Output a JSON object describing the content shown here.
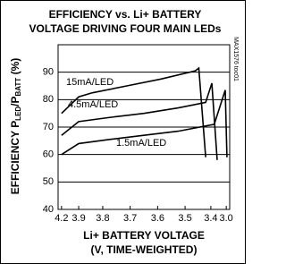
{
  "chart_data": {
    "type": "line",
    "title": [
      "EFFICIENCY vs. Li+ BATTERY",
      "VOLTAGE DRIVING FOUR MAIN LEDs"
    ],
    "ylabel": [
      "EFFICIENCY P",
      "LED",
      "/P",
      "BATT",
      " (%)"
    ],
    "xlabel": [
      "Li+ BATTERY VOLTAGE",
      "(V, TIME-WEIGHTED)"
    ],
    "annotation": "MAX1576 toc01",
    "xlim": [
      0,
      100
    ],
    "xticks": [
      {
        "value": 2,
        "label": "4.2"
      },
      {
        "value": 12,
        "label": "3.9"
      },
      {
        "value": 26,
        "label": "3.8"
      },
      {
        "value": 42,
        "label": "3.7"
      },
      {
        "value": 58,
        "label": "3.6"
      },
      {
        "value": 74,
        "label": "3.5"
      },
      {
        "value": 89,
        "label": "3.4"
      },
      {
        "value": 98,
        "label": "3.0"
      }
    ],
    "ylim": [
      40,
      100
    ],
    "yticks": [
      40,
      50,
      60,
      70,
      80,
      90
    ],
    "grid": true,
    "series": [
      {
        "name": "15mA/LED",
        "color": "#000000",
        "x": [
          2,
          12,
          20,
          40,
          60,
          80,
          82,
          86
        ],
        "values": [
          75,
          81,
          82.5,
          85,
          87.5,
          90.5,
          91.5,
          59
        ]
      },
      {
        "name": "4.5mA/LED",
        "color": "#000000",
        "x": [
          2,
          12,
          30,
          50,
          70,
          86,
          89.6,
          92.7
        ],
        "values": [
          67,
          72,
          73.5,
          75,
          77,
          79,
          86,
          58
        ]
      },
      {
        "name": "1.5mA/LED",
        "color": "#000000",
        "x": [
          2,
          12,
          30,
          50,
          70,
          91,
          97.4,
          98.4
        ],
        "values": [
          60,
          64,
          65.5,
          67,
          68.5,
          71,
          83.5,
          59
        ]
      }
    ]
  }
}
